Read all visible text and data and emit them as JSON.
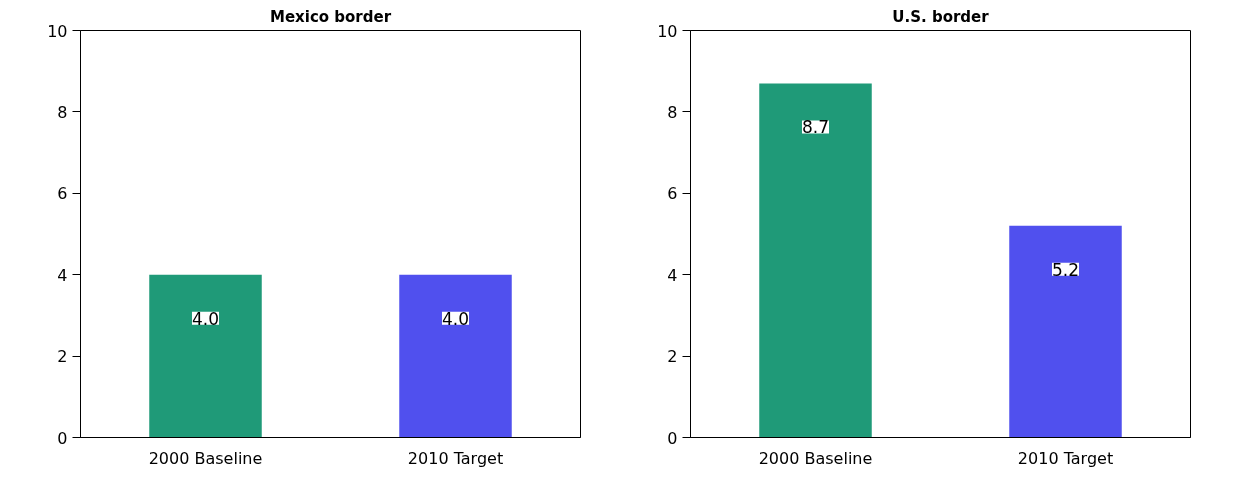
{
  "chart_data": [
    {
      "type": "bar",
      "title": "Mexico border",
      "categories": [
        "2000 Baseline",
        "2010 Target"
      ],
      "values": [
        4.0,
        4.0
      ],
      "value_labels": [
        "4.0",
        "4.0"
      ],
      "colors": [
        "#1f9a78",
        "#5050ee"
      ],
      "ylim": [
        0,
        10
      ],
      "yticks": [
        0,
        2,
        4,
        6,
        8,
        10
      ],
      "grid": false
    },
    {
      "type": "bar",
      "title": "U.S. border",
      "categories": [
        "2000 Baseline",
        "2010 Target"
      ],
      "values": [
        8.7,
        5.2
      ],
      "value_labels": [
        "8.7",
        "5.2"
      ],
      "colors": [
        "#1f9a78",
        "#5050ee"
      ],
      "ylim": [
        0,
        10
      ],
      "yticks": [
        0,
        2,
        4,
        6,
        8,
        10
      ],
      "grid": false
    }
  ]
}
